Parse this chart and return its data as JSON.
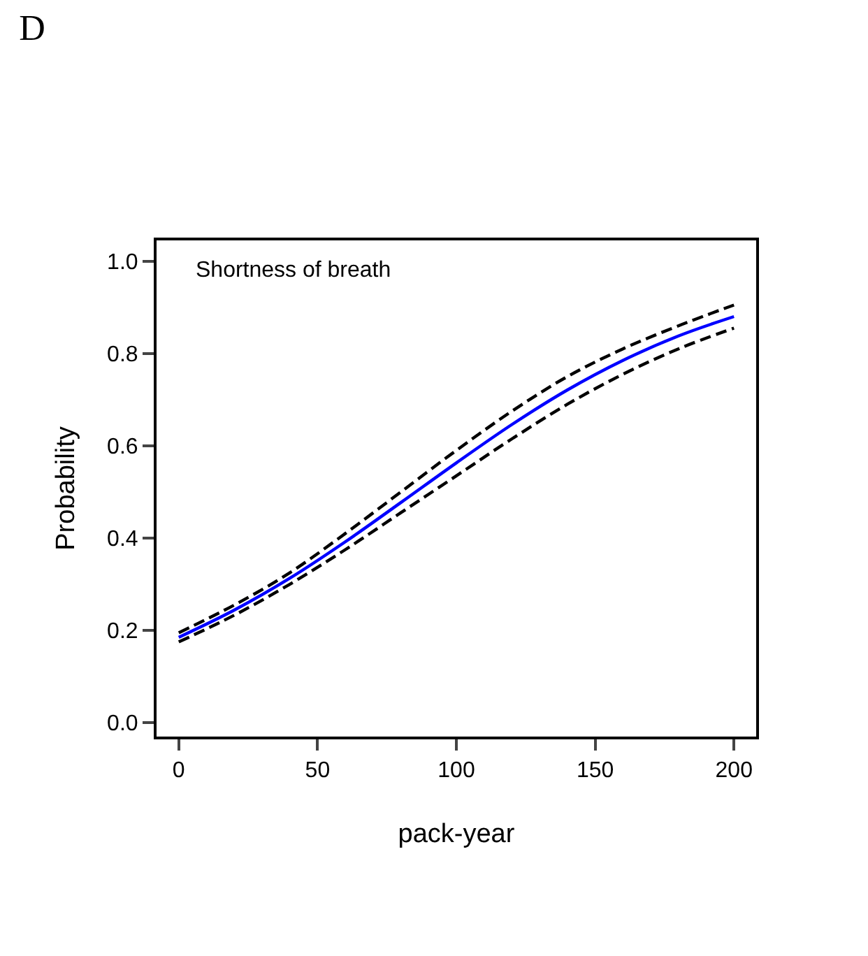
{
  "chart_data": {
    "type": "line",
    "title": "D",
    "xlabel": "pack-year",
    "ylabel": "Probability",
    "annotations": [
      "Shortness of breath"
    ],
    "x": [
      0,
      20,
      40,
      60,
      80,
      100,
      120,
      140,
      160,
      180,
      200
    ],
    "series": [
      {
        "color": "#0000ff",
        "line_style": "solid",
        "values": [
          0.185,
          0.244,
          0.313,
          0.392,
          0.477,
          0.563,
          0.646,
          0.721,
          0.785,
          0.838,
          0.88
        ]
      },
      {
        "color": "#000000",
        "line_style": "dashed",
        "values": [
          0.195,
          0.255,
          0.325,
          0.41,
          0.5,
          0.59,
          0.675,
          0.75,
          0.81,
          0.86,
          0.905
        ]
      },
      {
        "color": "#000000",
        "line_style": "dashed",
        "values": [
          0.175,
          0.233,
          0.3,
          0.375,
          0.455,
          0.535,
          0.615,
          0.69,
          0.755,
          0.81,
          0.855
        ]
      }
    ],
    "xlim": [
      -8,
      208
    ],
    "xticks": [
      0,
      50,
      100,
      150,
      200
    ],
    "ylim": [
      -0.03,
      1.045
    ],
    "yticks": [
      {
        "value": 0,
        "label": "0.0"
      },
      {
        "value": 0.2,
        "label": "0.2"
      },
      {
        "value": 0.4,
        "label": "0.4"
      },
      {
        "value": 0.6,
        "label": "0.6"
      },
      {
        "value": 0.8,
        "label": "0.8"
      },
      {
        "value": 1,
        "label": "1.0"
      }
    ],
    "grid": false,
    "marker": "none"
  }
}
